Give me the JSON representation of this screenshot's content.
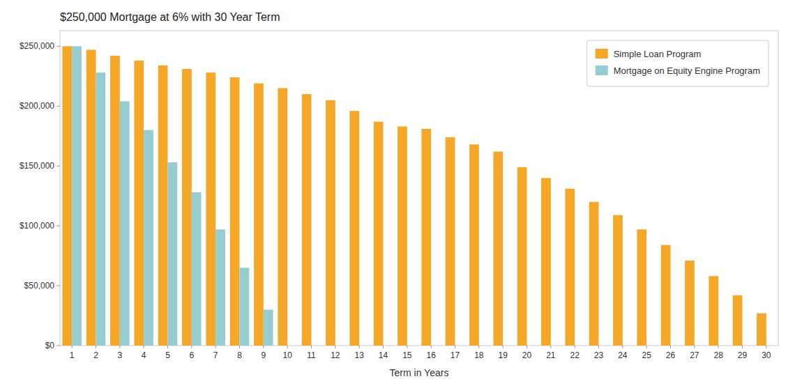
{
  "chart_data": {
    "type": "bar",
    "title": "$250,000 Mortgage at 6% with 30 Year Term",
    "x_label": "Term in Years",
    "categories": [
      1,
      2,
      3,
      4,
      5,
      6,
      7,
      8,
      9,
      10,
      11,
      12,
      13,
      14,
      15,
      16,
      17,
      18,
      19,
      20,
      21,
      22,
      23,
      24,
      25,
      26,
      27,
      28,
      29,
      30
    ],
    "series": [
      {
        "name": "Simple Loan Program",
        "color": "#F5A827",
        "values": [
          250000,
          247000,
          242000,
          238000,
          234000,
          231000,
          228000,
          224000,
          219000,
          215000,
          210000,
          205000,
          196000,
          187000,
          183000,
          181000,
          174000,
          168000,
          162000,
          149000,
          140000,
          131000,
          120000,
          109000,
          97000,
          84000,
          71000,
          58000,
          42000,
          27000
        ]
      },
      {
        "name": "Mortgage on Equity Engine Program",
        "color": "#96CDD0",
        "values": [
          250000,
          228000,
          204000,
          180000,
          153000,
          128000,
          97000,
          65000,
          30000,
          null,
          null,
          null,
          null,
          null,
          null,
          null,
          null,
          null,
          null,
          null,
          null,
          null,
          null,
          null,
          null,
          null,
          null,
          null,
          null,
          null
        ]
      }
    ],
    "ylim": [
      0,
      263000
    ],
    "yticks": [
      {
        "value": 0,
        "label": "$0"
      },
      {
        "value": 50000,
        "label": "$50,000"
      },
      {
        "value": 100000,
        "label": "$100,000"
      },
      {
        "value": 150000,
        "label": "$150,000"
      },
      {
        "value": 200000,
        "label": "$200,000"
      },
      {
        "value": 250000,
        "label": "$250,000"
      }
    ],
    "grid": false,
    "legend": "upper right"
  }
}
